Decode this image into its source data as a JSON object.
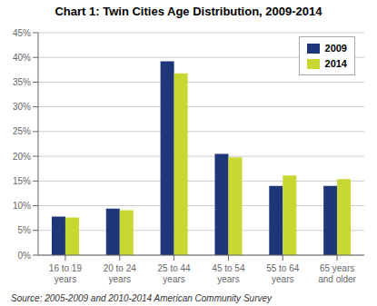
{
  "chart_data": {
    "type": "bar",
    "title": "Chart 1: Twin Cities Age Distribution, 2009-2014",
    "categories": [
      "16 to 19\nyears",
      "20 to 24\nyears",
      "25 to 44\nyears",
      "45 to 54\nyears",
      "55 to 64\nyears",
      "65 years\nand older"
    ],
    "series": [
      {
        "name": "2009",
        "color": "#1f3778",
        "values": [
          7.8,
          9.4,
          39.2,
          20.5,
          14.0,
          14.0
        ]
      },
      {
        "name": "2014",
        "color": "#c8d830",
        "values": [
          7.6,
          9.1,
          36.8,
          19.8,
          16.1,
          15.4
        ]
      }
    ],
    "ylim": [
      0,
      45
    ],
    "yticks": [
      {
        "value": 0,
        "label": "0%"
      },
      {
        "value": 5,
        "label": "5%"
      },
      {
        "value": 10,
        "label": "10%"
      },
      {
        "value": 15,
        "label": "15%"
      },
      {
        "value": 20,
        "label": "20%"
      },
      {
        "value": 25,
        "label": "25%"
      },
      {
        "value": 30,
        "label": "30%"
      },
      {
        "value": 35,
        "label": "35%"
      },
      {
        "value": 40,
        "label": "40%"
      },
      {
        "value": 45,
        "label": "45%"
      }
    ],
    "grid": true,
    "legend": "upper right",
    "annotations": [
      "Source: 2005-2009 and 2010-2014 American Community Survey"
    ]
  }
}
